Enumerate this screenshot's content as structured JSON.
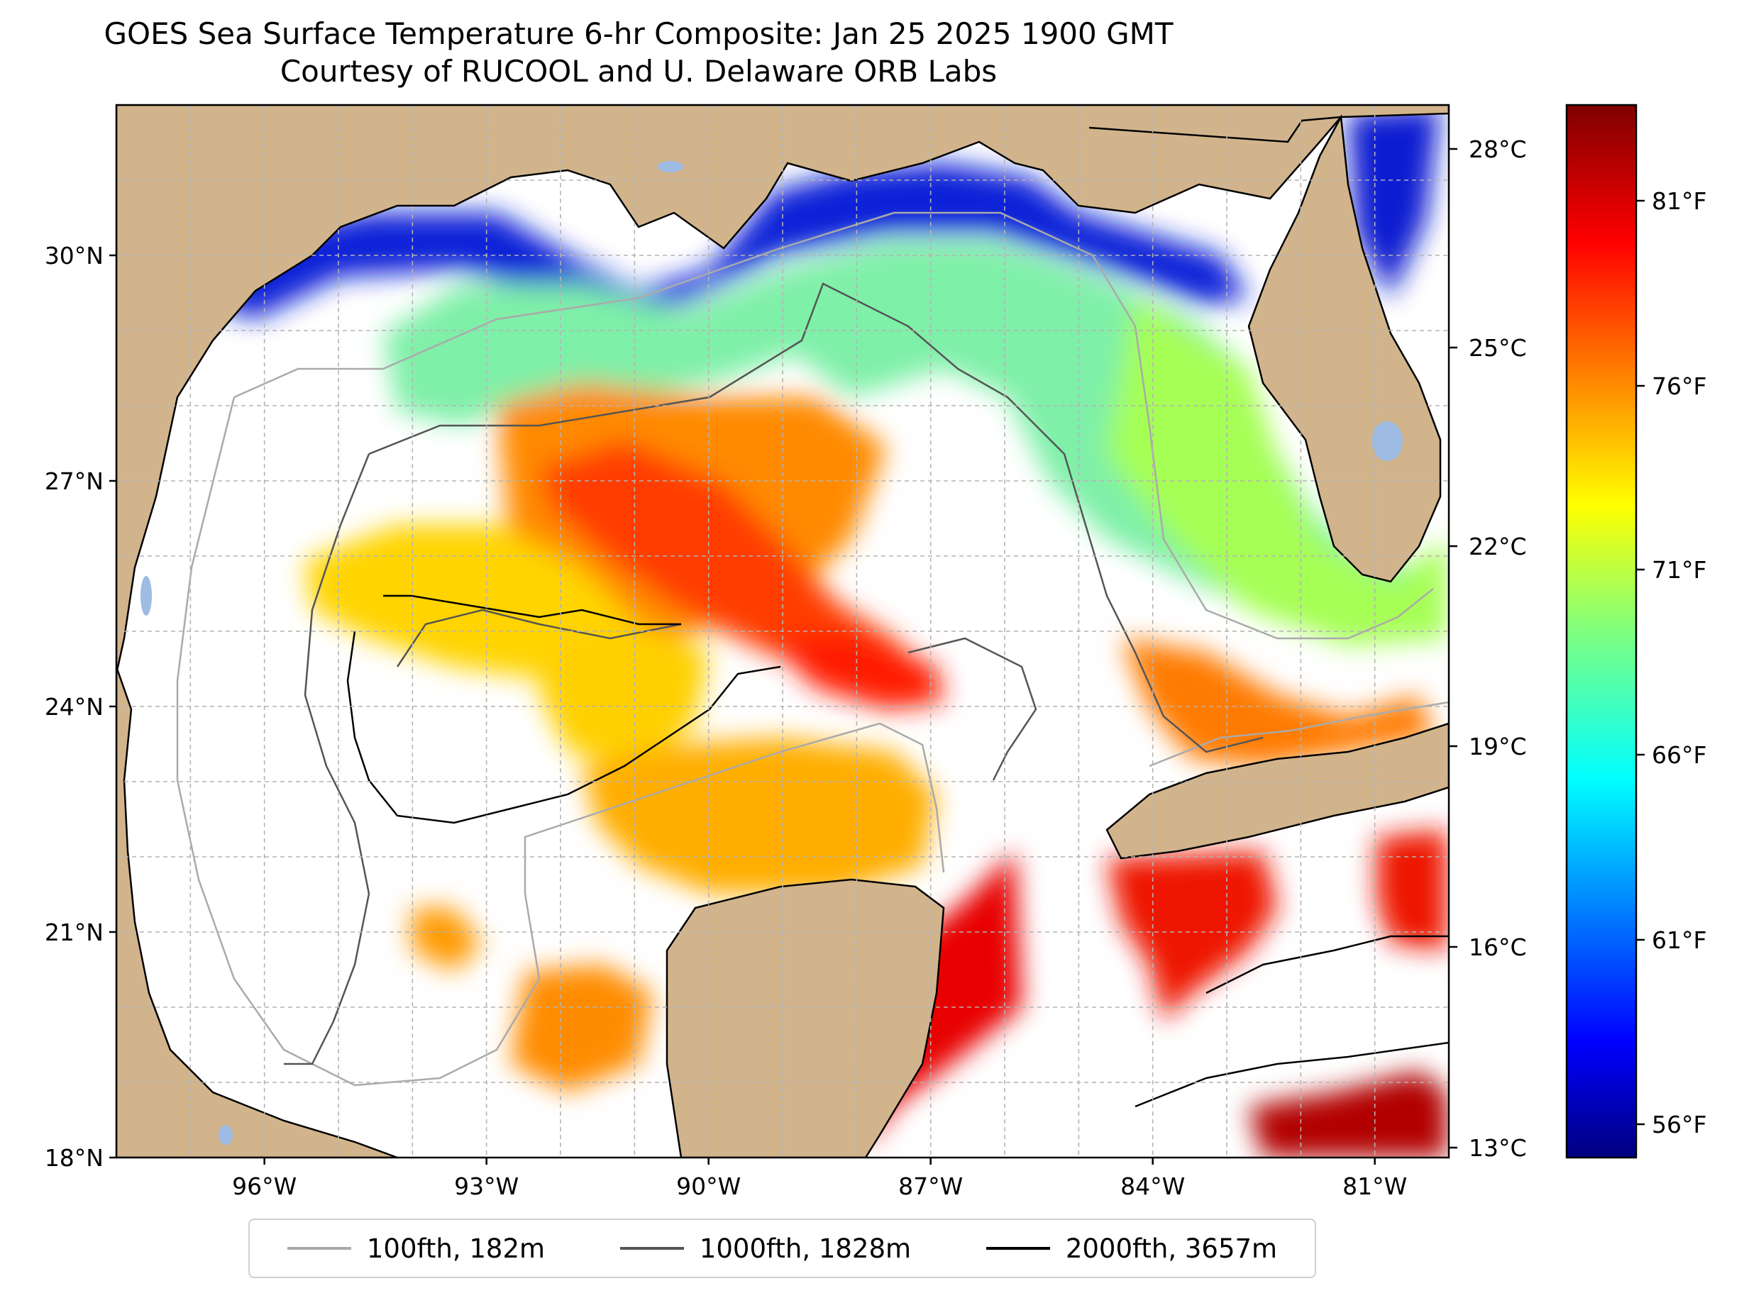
{
  "title": {
    "line1": "GOES Sea Surface Temperature 6-hr Composite: Jan 25 2025 1900 GMT",
    "line2": "Courtesy of RUCOOL and U. Delaware ORB Labs"
  },
  "map": {
    "lon_range": [
      -98.0,
      -80.0
    ],
    "lat_range": [
      18.0,
      32.0
    ],
    "grid": true,
    "lat_ticks": [
      {
        "value": 30,
        "label": "30°N"
      },
      {
        "value": 27,
        "label": "27°N"
      },
      {
        "value": 24,
        "label": "24°N"
      },
      {
        "value": 21,
        "label": "21°N"
      },
      {
        "value": 18,
        "label": "18°N"
      }
    ],
    "lon_ticks": [
      {
        "value": -96,
        "label": "96°W"
      },
      {
        "value": -93,
        "label": "93°W"
      },
      {
        "value": -90,
        "label": "90°W"
      },
      {
        "value": -87,
        "label": "87°W"
      },
      {
        "value": -84,
        "label": "84°W"
      },
      {
        "value": -81,
        "label": "81°W"
      }
    ],
    "colors": {
      "land": "#d2b48c",
      "lakes": "#9dbbe3",
      "ocean_nodata": "#ffffff",
      "coastline": "#000000",
      "grid": "#b4b4b4"
    }
  },
  "colorbar": {
    "colormap": "jet",
    "celsius_ticks": [
      "28°C",
      "25°C",
      "22°C",
      "19°C",
      "16°C",
      "13°C"
    ],
    "fahrenheit_ticks": [
      "81°F",
      "76°F",
      "71°F",
      "66°F",
      "61°F",
      "56°F"
    ]
  },
  "legend": {
    "position": "bottom",
    "items": [
      {
        "label": "100fth, 182m",
        "color": "#aaaaaa"
      },
      {
        "label": "1000fth, 1828m",
        "color": "#555555"
      },
      {
        "label": "2000fth, 3657m",
        "color": "#000000"
      }
    ]
  }
}
